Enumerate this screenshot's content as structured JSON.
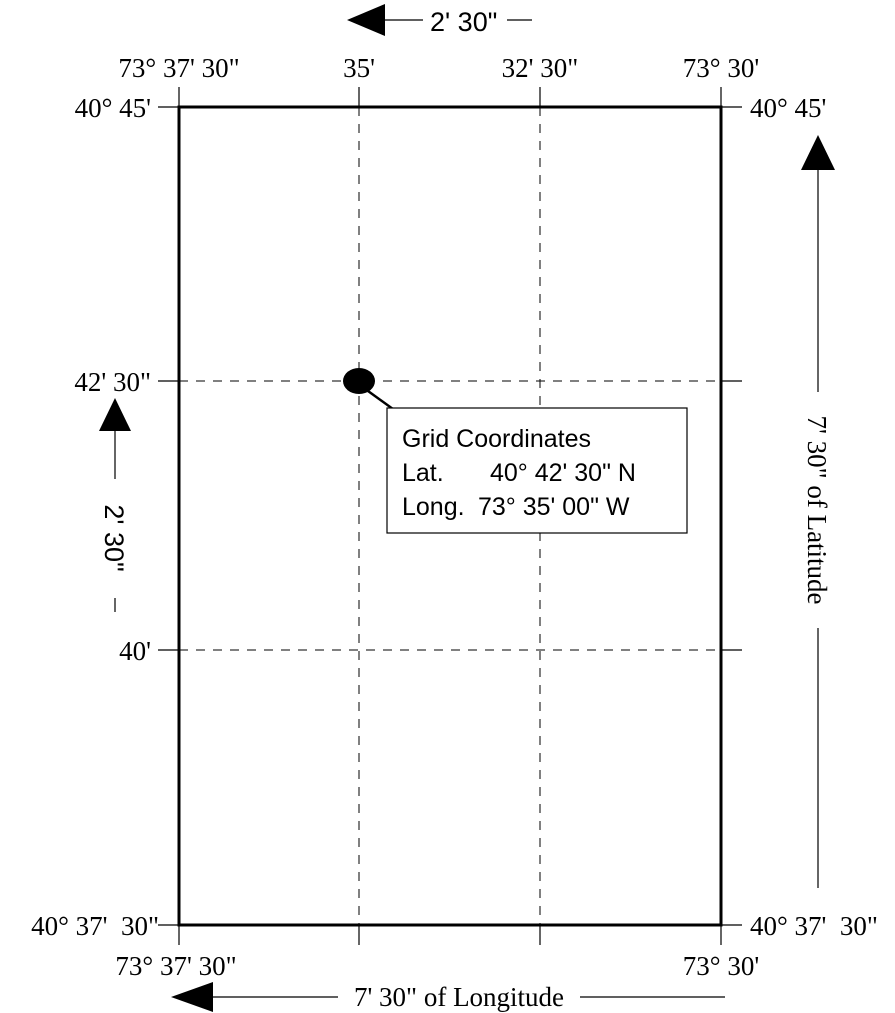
{
  "top_interval": {
    "label": "2' 30\""
  },
  "top_labels": {
    "left": "73° 37' 30\"",
    "mid_left": "35'",
    "mid_right": "32' 30\"",
    "right": "73° 30'"
  },
  "bottom_labels": {
    "left": "73° 37' 30\"",
    "right": "73° 30'"
  },
  "left_labels": {
    "top": "40° 45'",
    "upper_mid": "42' 30\"",
    "lower_mid": "40'",
    "bottom": "40° 37'  30\""
  },
  "right_labels": {
    "top": "40° 45'",
    "bottom": "40° 37'  30\""
  },
  "left_interval": {
    "label": "2' 30\""
  },
  "longitude_span": {
    "label": "7' 30\" of Longitude"
  },
  "latitude_span": {
    "label": "7' 30\" of Latitude"
  },
  "callout": {
    "title": "Grid Coordinates",
    "lat_label": "Lat.",
    "lat_value": "40° 42' 30\" N",
    "long_label": "Long.",
    "long_value": "73° 35' 00\" W"
  }
}
